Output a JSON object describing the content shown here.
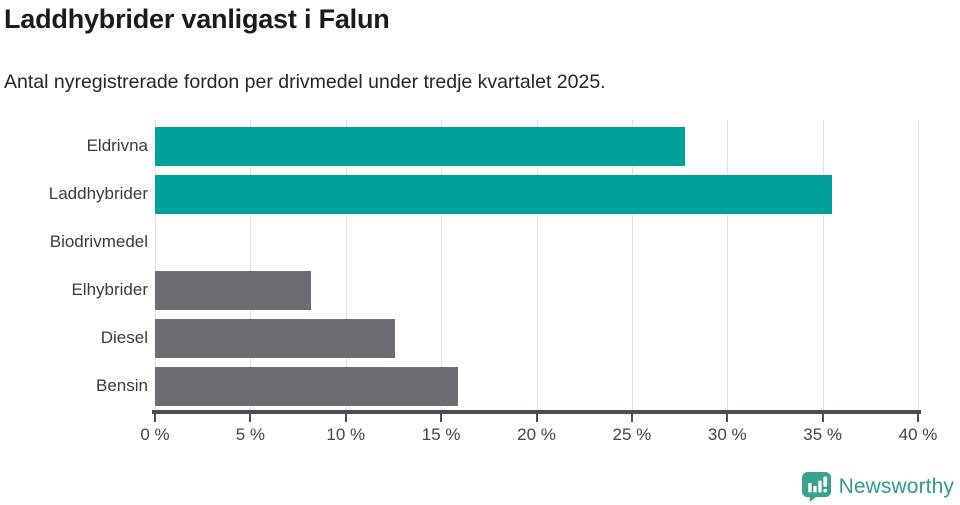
{
  "header": {
    "title": "Laddhybrider vanligast i Falun",
    "subtitle": "Antal nyregistrerade fordon per drivmedel under tredje kvartalet 2025."
  },
  "chart_data": {
    "type": "bar",
    "orientation": "horizontal",
    "title": "Laddhybrider vanligast i Falun",
    "subtitle": "Antal nyregistrerade fordon per drivmedel under tredje kvartalet 2025.",
    "categories": [
      "Eldrivna",
      "Laddhybrider",
      "Biodrivmedel",
      "Elhybrider",
      "Diesel",
      "Bensin"
    ],
    "values": [
      27.8,
      35.5,
      0,
      8.2,
      12.6,
      15.9
    ],
    "unit": "%",
    "xlim": [
      0,
      40
    ],
    "x_tick_values": [
      0,
      5,
      10,
      15,
      20,
      25,
      30,
      35,
      40
    ],
    "x_tick_labels": [
      "0 %",
      "5 %",
      "10 %",
      "15 %",
      "20 %",
      "25 %",
      "30 %",
      "35 %",
      "40 %"
    ],
    "grid": true,
    "legend": "none",
    "bar_colors": [
      "#00a19a",
      "#00a19a",
      "#6d6d71",
      "#6d6d71",
      "#6d6d71",
      "#6d6d71"
    ],
    "highlight_color": "#00a19a",
    "default_color": "#6d6d71",
    "gridline_color": "#e2e2e2",
    "axis_color": "#4d4e53"
  },
  "branding": {
    "logo_text": "Newsworthy",
    "logo_color": "#2f9c92",
    "icon_color": "#3aa191"
  }
}
